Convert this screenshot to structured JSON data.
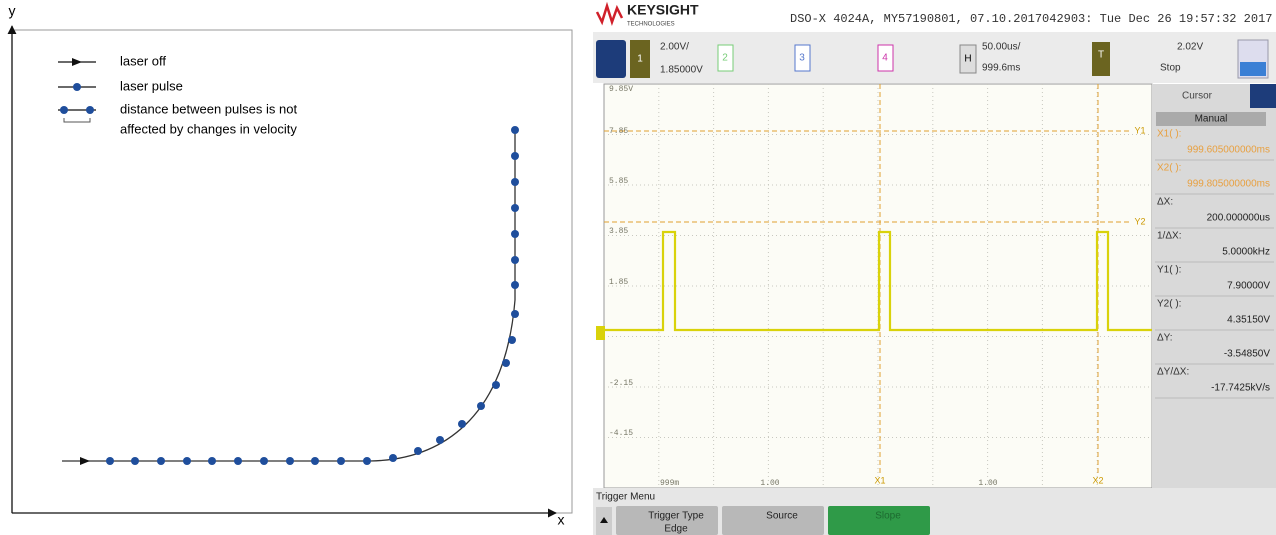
{
  "diagram": {
    "y_axis": "y",
    "x_axis": "x",
    "legend": [
      "laser off",
      "laser pulse",
      "distance between pulses is not",
      "affected by changes in velocity"
    ]
  },
  "scope": {
    "brand": "KEYSIGHT",
    "brand_sub": "TECHNOLOGIES",
    "status": "DSO-X 4024A, MY57190801, 07.10.2017042903: Tue Dec 26 19:57:32 2017",
    "ch1": {
      "number": "1",
      "scale": "2.00V/",
      "offset": "1.85000V"
    },
    "channels": [
      "2",
      "3",
      "4"
    ],
    "horizontal": {
      "label": "H",
      "scale": "50.00us/",
      "position": "999.6ms"
    },
    "trigger": {
      "label": "T",
      "level": "2.02V",
      "state": "Stop"
    },
    "y_labels": [
      "9.85V",
      "7.85",
      "5.85",
      "3.85",
      "1.85",
      "-2.15",
      "-4.15"
    ],
    "x_labels": [
      "999m",
      "1.00",
      "1.00"
    ],
    "cursors": [
      "X1",
      "X2",
      "Y1",
      "Y2"
    ],
    "panel": {
      "tab": "Cursor",
      "mode": "Manual",
      "rows": [
        [
          "X1( ):",
          "999.605000000ms"
        ],
        [
          "X2( ):",
          "999.805000000ms"
        ],
        [
          "ΔX:",
          "200.000000us"
        ],
        [
          "1/ΔX:",
          "5.0000kHz"
        ],
        [
          "Y1( ):",
          "7.90000V"
        ],
        [
          "Y2( ):",
          "4.35150V"
        ],
        [
          "ΔY:",
          "-3.54850V"
        ],
        [
          "ΔY/ΔX:",
          "-17.7425kV/s"
        ]
      ]
    },
    "menu": {
      "title": "Trigger Menu",
      "buttons": [
        [
          "Trigger Type",
          "Edge"
        ],
        [
          "Source"
        ],
        [
          "Slope"
        ]
      ]
    }
  }
}
